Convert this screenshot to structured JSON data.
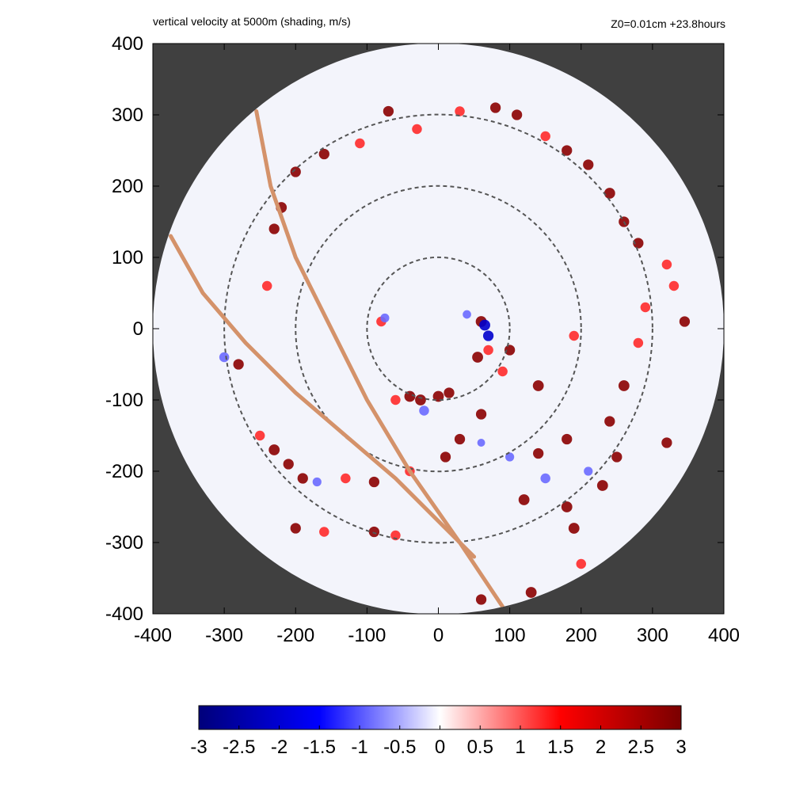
{
  "header": {
    "title": "vertical velocity at 5000m (shading, m/s)",
    "info": "Z0=0.01cm  +23.8hours"
  },
  "colors": {
    "background_outside_domain": "#404040",
    "domain_fill": "#f3f4fb",
    "ring_color": "#555555",
    "track_color": "#d4926a",
    "updraft_strong": "#8b0000",
    "updraft_mid": "#ff2a2a",
    "downdraft_strong": "#0000cc",
    "downdraft_mid": "#6a6aff"
  },
  "chart_data": {
    "type": "heatmap",
    "title": "vertical velocity at 5000m (shading, m/s)",
    "xlim": [
      -400,
      400
    ],
    "ylim": [
      -400,
      400
    ],
    "x_ticks": [
      -400,
      -300,
      -200,
      -100,
      0,
      100,
      200,
      300,
      400
    ],
    "y_ticks": [
      -400,
      -300,
      -200,
      -100,
      0,
      100,
      200,
      300,
      400
    ],
    "x_tick_labels": [
      "-400",
      "-300",
      "-200",
      "-100",
      "0",
      "100",
      "200",
      "300",
      "400"
    ],
    "y_tick_labels": [
      "-400",
      "-300",
      "-200",
      "-100",
      "0",
      "100",
      "200",
      "300",
      "400"
    ],
    "domain_radius": 400,
    "range_rings": [
      100,
      200,
      300
    ],
    "tracks": [
      [
        [
          -255,
          305
        ],
        [
          -235,
          200
        ],
        [
          -200,
          100
        ],
        [
          -150,
          0
        ],
        [
          -100,
          -100
        ],
        [
          -40,
          -200
        ],
        [
          30,
          -300
        ],
        [
          90,
          -390
        ]
      ],
      [
        [
          -375,
          130
        ],
        [
          -330,
          50
        ],
        [
          -270,
          -20
        ],
        [
          -200,
          -90
        ],
        [
          -130,
          -150
        ],
        [
          -60,
          -210
        ],
        [
          0,
          -270
        ],
        [
          50,
          -320
        ]
      ]
    ],
    "features": [
      {
        "x": 60,
        "y": 10,
        "w": 3.0
      },
      {
        "x": 65,
        "y": 5,
        "w": -3.0
      },
      {
        "x": 70,
        "y": -10,
        "w": -2.8
      },
      {
        "x": 55,
        "y": -40,
        "w": 3.0
      },
      {
        "x": 70,
        "y": -30,
        "w": 2.5
      },
      {
        "x": 40,
        "y": 20,
        "w": -1.8
      },
      {
        "x": -80,
        "y": 10,
        "w": 2.5
      },
      {
        "x": -75,
        "y": 15,
        "w": -2.0
      },
      {
        "x": -40,
        "y": -95,
        "w": 3.0
      },
      {
        "x": -25,
        "y": -100,
        "w": 3.0
      },
      {
        "x": 0,
        "y": -95,
        "w": 3.0
      },
      {
        "x": 15,
        "y": -90,
        "w": 2.8
      },
      {
        "x": -60,
        "y": -100,
        "w": 2.5
      },
      {
        "x": -20,
        "y": -115,
        "w": -2.5
      },
      {
        "x": 60,
        "y": -120,
        "w": 2.8
      },
      {
        "x": 30,
        "y": -155,
        "w": 2.8
      },
      {
        "x": 10,
        "y": -180,
        "w": 2.8
      },
      {
        "x": 90,
        "y": -60,
        "w": 2.5
      },
      {
        "x": 100,
        "y": -30,
        "w": 2.8
      },
      {
        "x": 140,
        "y": -80,
        "w": 3.0
      },
      {
        "x": 190,
        "y": -10,
        "w": 2.5
      },
      {
        "x": 150,
        "y": -210,
        "w": -2.5
      },
      {
        "x": 120,
        "y": -240,
        "w": 3.0
      },
      {
        "x": 180,
        "y": -250,
        "w": 3.0
      },
      {
        "x": 190,
        "y": -280,
        "w": 3.0
      },
      {
        "x": 230,
        "y": -220,
        "w": 3.0
      },
      {
        "x": 250,
        "y": -180,
        "w": 2.8
      },
      {
        "x": 140,
        "y": -175,
        "w": 2.8
      },
      {
        "x": 180,
        "y": -155,
        "w": 2.8
      },
      {
        "x": 240,
        "y": -130,
        "w": 2.8
      },
      {
        "x": 260,
        "y": -80,
        "w": 3.0
      },
      {
        "x": 280,
        "y": -20,
        "w": 2.5
      },
      {
        "x": 320,
        "y": -160,
        "w": 2.8
      },
      {
        "x": 290,
        "y": 30,
        "w": 2.5
      },
      {
        "x": 330,
        "y": 60,
        "w": 2.5
      },
      {
        "x": 345,
        "y": 10,
        "w": 2.8
      },
      {
        "x": 320,
        "y": 90,
        "w": 2.5
      },
      {
        "x": 280,
        "y": 120,
        "w": 2.8
      },
      {
        "x": 260,
        "y": 150,
        "w": 2.8
      },
      {
        "x": 240,
        "y": 190,
        "w": 3.0
      },
      {
        "x": 210,
        "y": 230,
        "w": 2.8
      },
      {
        "x": 180,
        "y": 250,
        "w": 2.8
      },
      {
        "x": 150,
        "y": 270,
        "w": 2.5
      },
      {
        "x": 110,
        "y": 300,
        "w": 2.8
      },
      {
        "x": 80,
        "y": 310,
        "w": 2.8
      },
      {
        "x": 30,
        "y": 305,
        "w": 2.5
      },
      {
        "x": -30,
        "y": 280,
        "w": 2.5
      },
      {
        "x": -70,
        "y": 305,
        "w": 2.8
      },
      {
        "x": -110,
        "y": 260,
        "w": 2.5
      },
      {
        "x": -160,
        "y": 245,
        "w": 2.8
      },
      {
        "x": -200,
        "y": 220,
        "w": 2.8
      },
      {
        "x": -220,
        "y": 170,
        "w": 3.0
      },
      {
        "x": -230,
        "y": 140,
        "w": 2.8
      },
      {
        "x": -240,
        "y": 60,
        "w": 2.5
      },
      {
        "x": -300,
        "y": -40,
        "w": -2.5
      },
      {
        "x": -280,
        "y": -50,
        "w": 2.8
      },
      {
        "x": -250,
        "y": -150,
        "w": 2.5
      },
      {
        "x": -230,
        "y": -170,
        "w": 3.0
      },
      {
        "x": -210,
        "y": -190,
        "w": 2.8
      },
      {
        "x": -190,
        "y": -210,
        "w": 2.8
      },
      {
        "x": -170,
        "y": -215,
        "w": -2.0
      },
      {
        "x": -130,
        "y": -210,
        "w": 2.5
      },
      {
        "x": -90,
        "y": -215,
        "w": 2.8
      },
      {
        "x": -40,
        "y": -200,
        "w": 2.5
      },
      {
        "x": -200,
        "y": -280,
        "w": 2.8
      },
      {
        "x": -160,
        "y": -285,
        "w": 2.5
      },
      {
        "x": -90,
        "y": -285,
        "w": 2.8
      },
      {
        "x": -60,
        "y": -290,
        "w": 2.5
      },
      {
        "x": 60,
        "y": -380,
        "w": 2.8
      },
      {
        "x": 130,
        "y": -370,
        "w": 3.0
      },
      {
        "x": 200,
        "y": -330,
        "w": 2.5
      },
      {
        "x": 100,
        "y": -180,
        "w": -2.0
      },
      {
        "x": 60,
        "y": -160,
        "w": -1.5
      },
      {
        "x": 210,
        "y": -200,
        "w": -2.0
      }
    ],
    "colorbar": {
      "range": [
        -3,
        3
      ],
      "ticks": [
        "-3",
        "-2.5",
        "-2",
        "-1.5",
        "-1",
        "-0.5",
        "0",
        "0.5",
        "1",
        "1.5",
        "2",
        "2.5",
        "3"
      ],
      "stops": [
        "#00007a",
        "#0000ff",
        "#ffffff",
        "#ff0000",
        "#7a0000"
      ]
    }
  }
}
